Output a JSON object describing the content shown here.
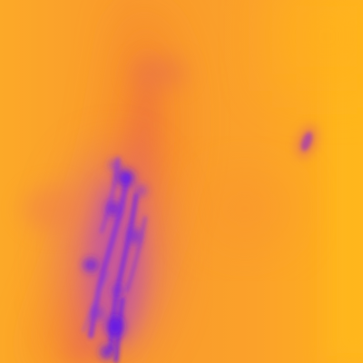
{
  "image": {
    "kind": "false-color thermal / density field",
    "palette": {
      "background": "#fba62c",
      "edge_glow": "#ffb21a",
      "mid": "#f7892c",
      "warm": "#ee7a3a",
      "low": "#c659a6",
      "deep": "#7b2bd9",
      "deepest": "#6419e6"
    }
  }
}
